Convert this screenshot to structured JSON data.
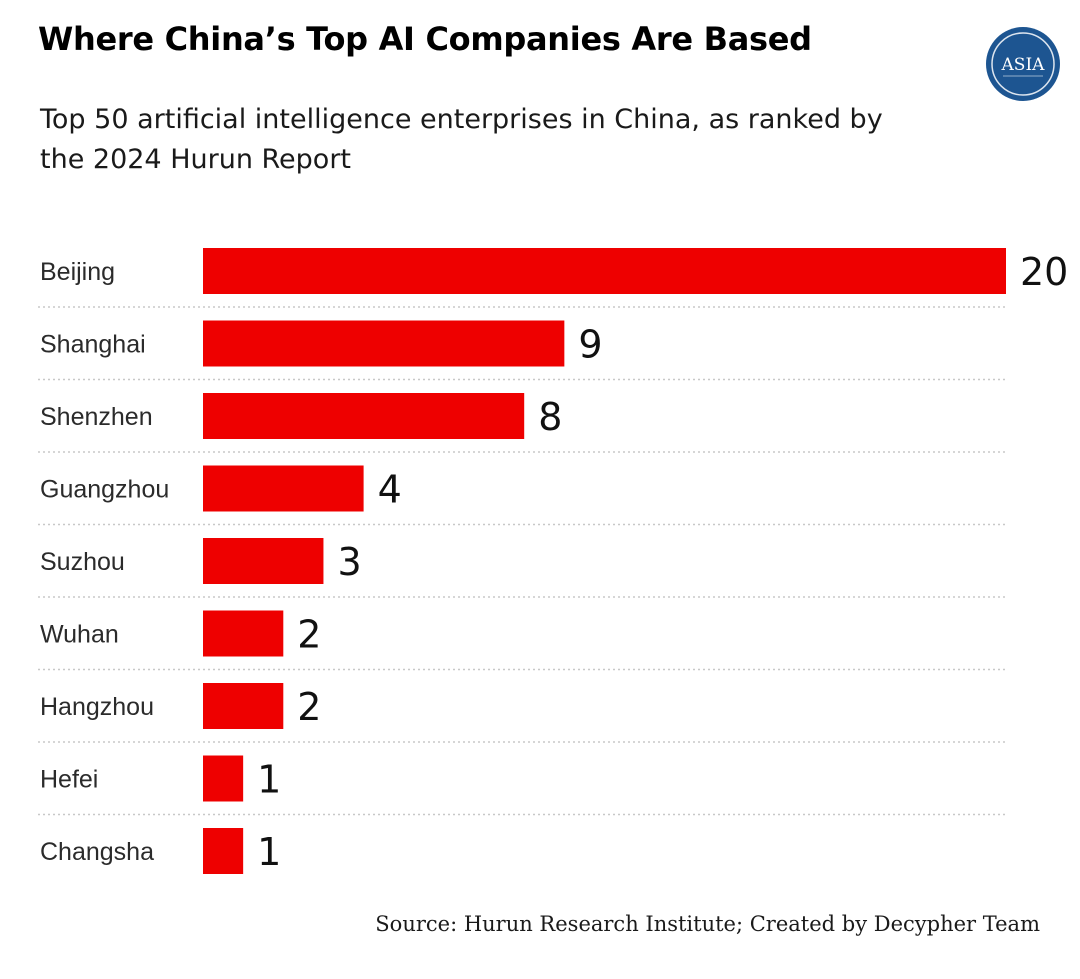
{
  "header": {
    "title": "Where China’s Top AI Companies Are Based",
    "subtitle": "Top 50 artificial intelligence enterprises in China, as ranked by the 2024 Hurun Report"
  },
  "logo": {
    "text": "ASIA",
    "bg_color": "#1d5591",
    "ring_color": "#ffffff"
  },
  "source": "Source: Hurun Research Institute; Created by Decypher Team",
  "colors": {
    "bar": "#ee0000",
    "grid": "#c8c8c8"
  },
  "chart_data": {
    "type": "bar",
    "orientation": "horizontal",
    "title": "Where China’s Top AI Companies Are Based",
    "categories": [
      "Beijing",
      "Shanghai",
      "Shenzhen",
      "Guangzhou",
      "Suzhou",
      "Wuhan",
      "Hangzhou",
      "Hefei",
      "Changsha"
    ],
    "values": [
      20,
      9,
      8,
      4,
      3,
      2,
      2,
      1,
      1
    ],
    "xlim": [
      0,
      20
    ],
    "xlabel": "",
    "ylabel": "",
    "grid": false,
    "data_labels": true
  }
}
